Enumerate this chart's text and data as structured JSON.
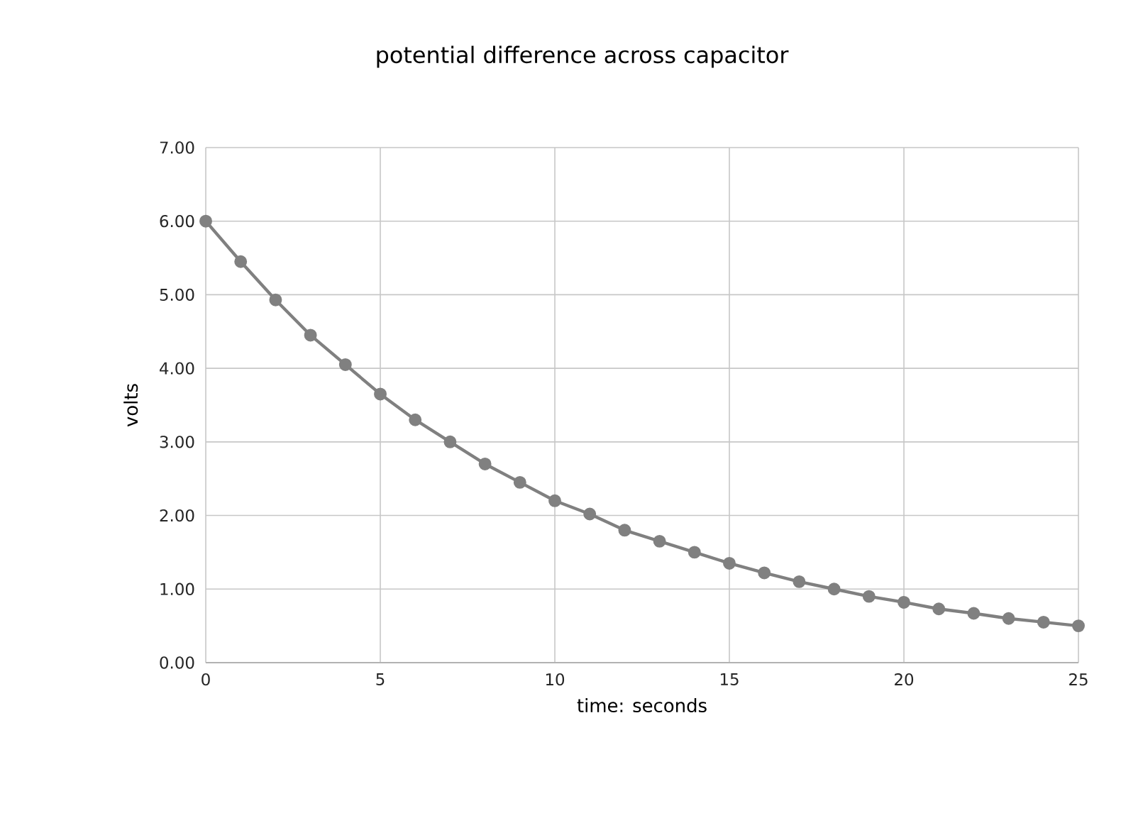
{
  "chart_data": {
    "type": "line",
    "title": "potential difference across capacitor",
    "xlabel": "time: seconds",
    "ylabel": "volts",
    "x": [
      0,
      1,
      2,
      3,
      4,
      5,
      6,
      7,
      8,
      9,
      10,
      11,
      12,
      13,
      14,
      15,
      16,
      17,
      18,
      19,
      20,
      21,
      22,
      23,
      24,
      25
    ],
    "series": [
      {
        "color": "#808080",
        "values": [
          6.0,
          5.45,
          4.93,
          4.45,
          4.05,
          3.65,
          3.3,
          3.0,
          2.7,
          2.45,
          2.2,
          2.02,
          1.8,
          1.65,
          1.5,
          1.35,
          1.22,
          1.1,
          1.0,
          0.9,
          0.82,
          0.73,
          0.67,
          0.6,
          0.55,
          0.5
        ]
      }
    ],
    "xlim": [
      0,
      25
    ],
    "xticks": [
      0,
      5,
      10,
      15,
      20,
      25
    ],
    "ylim": [
      0,
      7
    ],
    "yticks": [
      {
        "value": 0,
        "label": "0.00"
      },
      {
        "value": 1,
        "label": "1.00"
      },
      {
        "value": 2,
        "label": "2.00"
      },
      {
        "value": 3,
        "label": "3.00"
      },
      {
        "value": 4,
        "label": "4.00"
      },
      {
        "value": 5,
        "label": "5.00"
      },
      {
        "value": 6,
        "label": "6.00"
      },
      {
        "value": 7,
        "label": "7.00"
      }
    ],
    "grid": true,
    "marker": "circle",
    "line_style": "solid"
  }
}
